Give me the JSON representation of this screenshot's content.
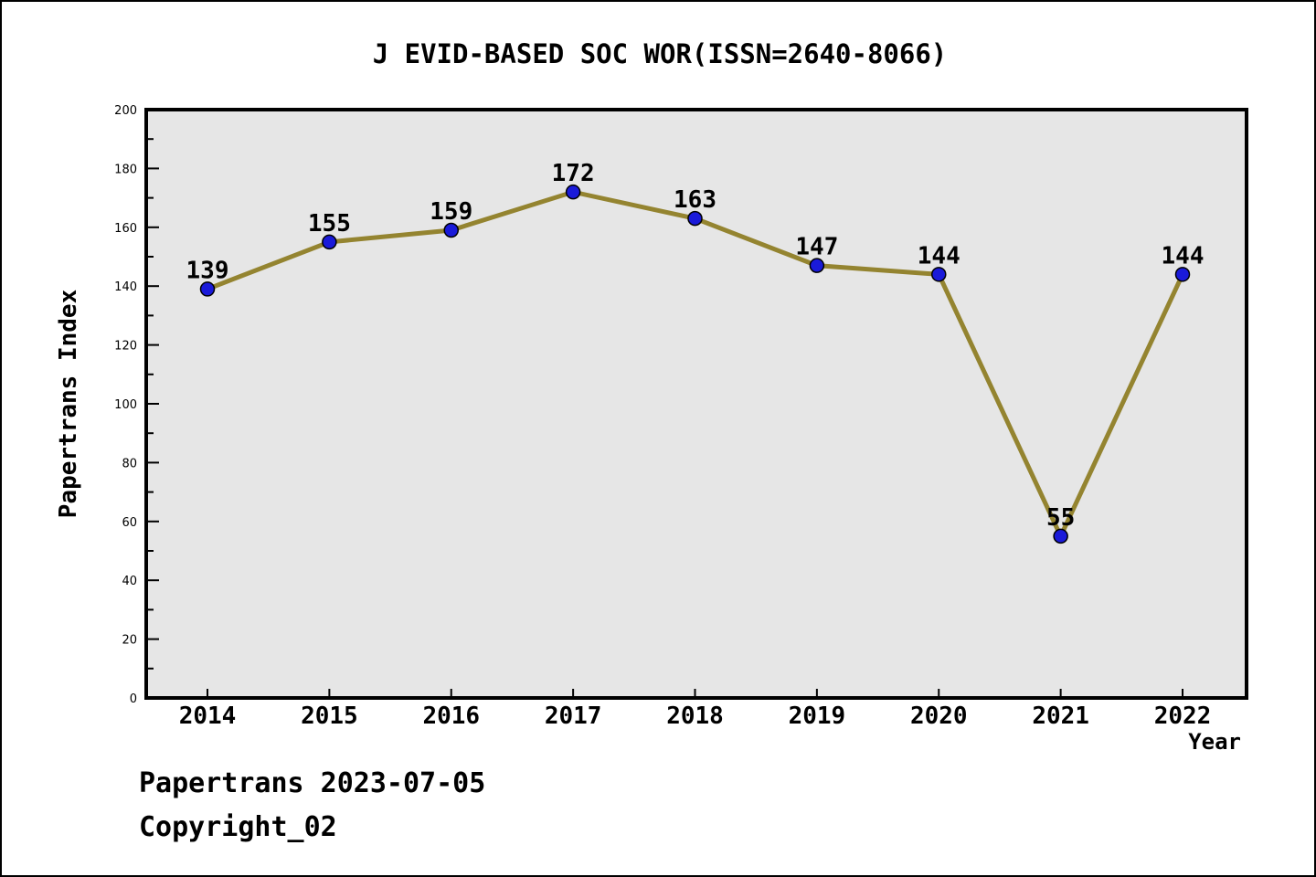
{
  "figure": {
    "title": "J EVID-BASED SOC WOR(ISSN=2640-8066)",
    "footer_line1": "Papertrans 2023-07-05",
    "footer_line2": "Copyright_02"
  },
  "chart_data": {
    "type": "line",
    "title": "J EVID-BASED SOC WOR(ISSN=2640-8066)",
    "categories": [
      "2014",
      "2015",
      "2016",
      "2017",
      "2018",
      "2019",
      "2020",
      "2021",
      "2022"
    ],
    "series": [
      {
        "name": "Papertrans Index",
        "values": [
          139,
          155,
          159,
          172,
          163,
          147,
          144,
          55,
          144
        ]
      }
    ],
    "point_labels": [
      "139",
      "155",
      "159",
      "172",
      "163",
      "147",
      "144",
      "55",
      "144"
    ],
    "xlabel": "Year",
    "ylabel": "Papertrans Index",
    "ylim": [
      0,
      200
    ],
    "ytick_step": 20,
    "yminor_step": 10,
    "grid": false,
    "legend": "none",
    "colors": {
      "line": "#948430",
      "marker_fill": "#1a1ad9",
      "marker_edge": "#000000",
      "plot_background": "#e6e6e6",
      "axis": "#000000",
      "text": "#000000",
      "figure_background": "#ffffff"
    }
  }
}
